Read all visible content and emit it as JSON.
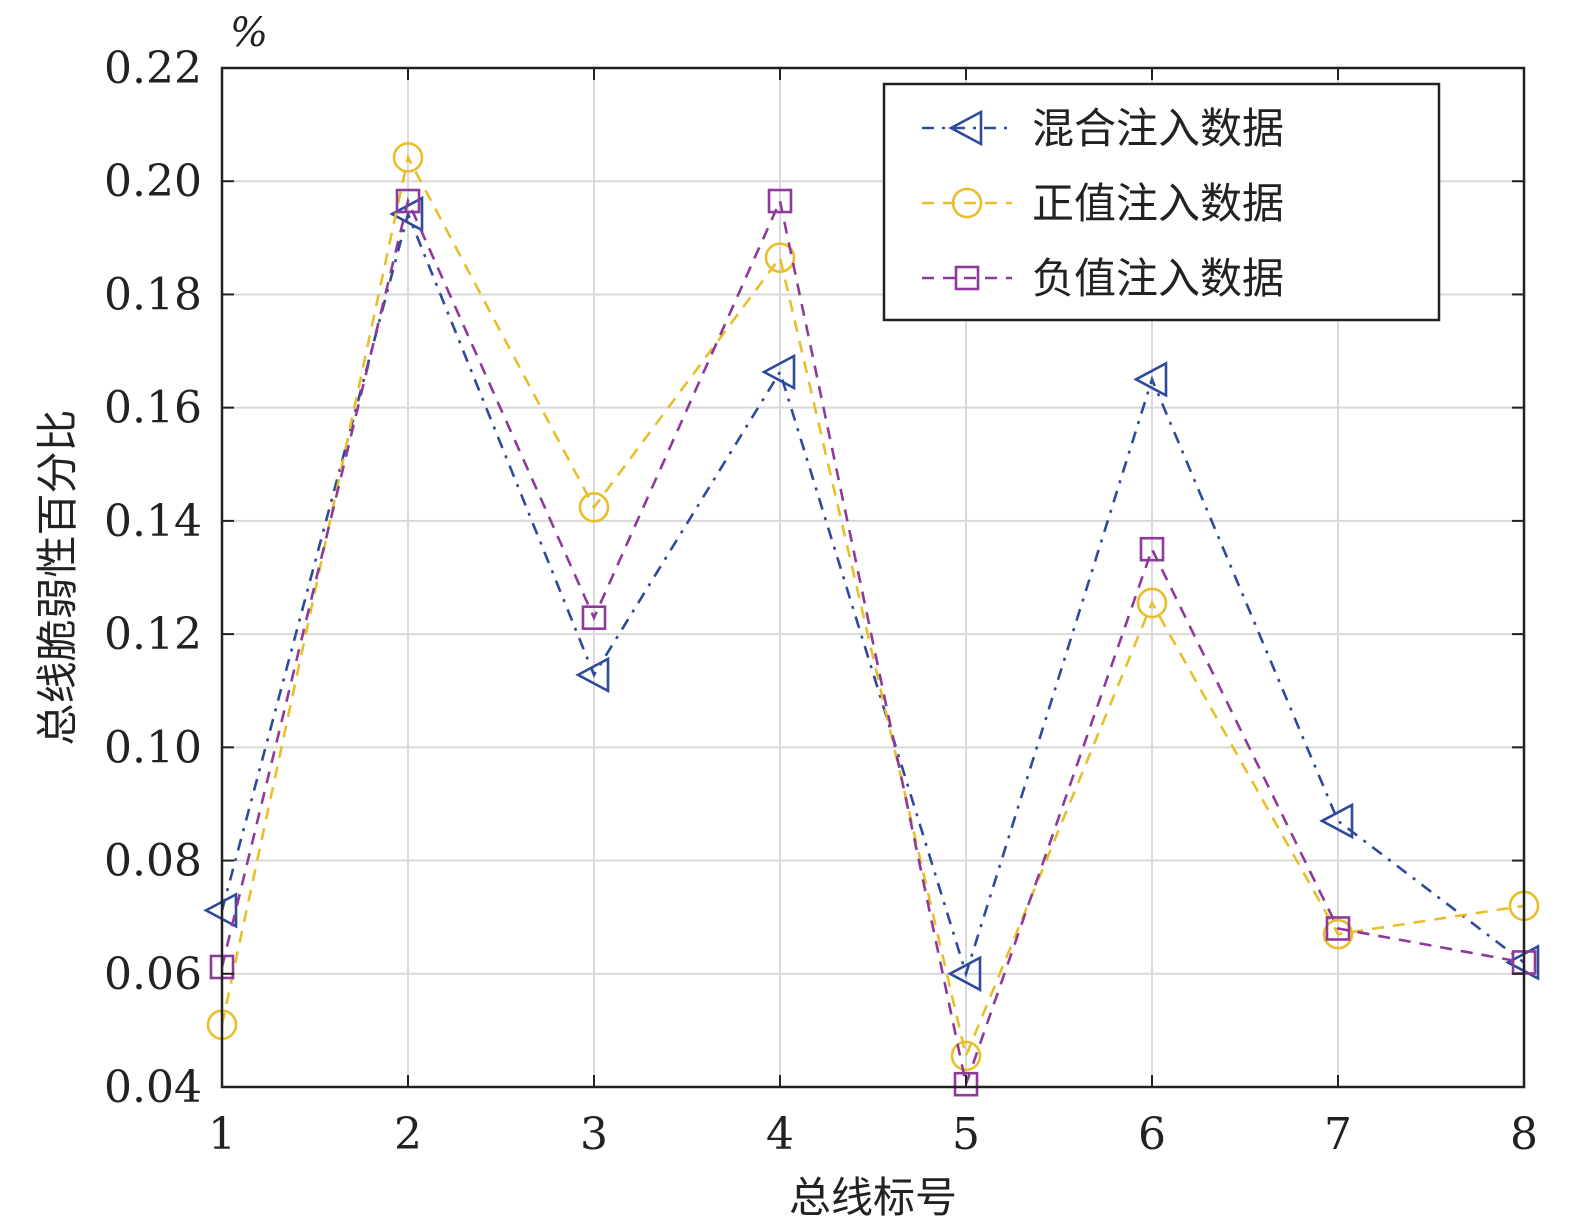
{
  "chart_data": {
    "type": "line",
    "title": "",
    "xlabel": "总线标号",
    "ylabel": "总线脆弱性百分比",
    "y_unit": "%",
    "x": [
      1,
      2,
      3,
      4,
      5,
      6,
      7,
      8
    ],
    "x_tick_labels": [
      "1",
      "2",
      "3",
      "4",
      "5",
      "6",
      "7",
      "8"
    ],
    "y_tick_labels": [
      "0.04",
      "0.06",
      "0.08",
      "0.10",
      "0.12",
      "0.14",
      "0.16",
      "0.18",
      "0.20",
      "0.22"
    ],
    "xlim": [
      1,
      8
    ],
    "ylim": [
      0.04,
      0.22
    ],
    "yticks": [
      0.04,
      0.06,
      0.08,
      0.1,
      0.12,
      0.14,
      0.16,
      0.18,
      0.2,
      0.22
    ],
    "grid": true,
    "legend_position": "top-right",
    "series": [
      {
        "name": "混合注入数据",
        "values": [
          0.0712,
          0.1942,
          0.1128,
          0.1663,
          0.06,
          0.165,
          0.087,
          0.062
        ],
        "color": "#2d4a9c",
        "marker": "triangle-left",
        "line_style": "dash-dot"
      },
      {
        "name": "正值注入数据",
        "values": [
          0.051,
          0.2042,
          0.1424,
          0.1865,
          0.0455,
          0.1255,
          0.067,
          0.072
        ],
        "color": "#e8bf2a",
        "marker": "circle",
        "line_style": "dashed"
      },
      {
        "name": "负值注入数据",
        "values": [
          0.0612,
          0.1965,
          0.1229,
          0.1965,
          0.0405,
          0.135,
          0.068,
          0.062
        ],
        "color": "#8e3a9a",
        "marker": "square",
        "line_style": "dashed"
      }
    ]
  }
}
